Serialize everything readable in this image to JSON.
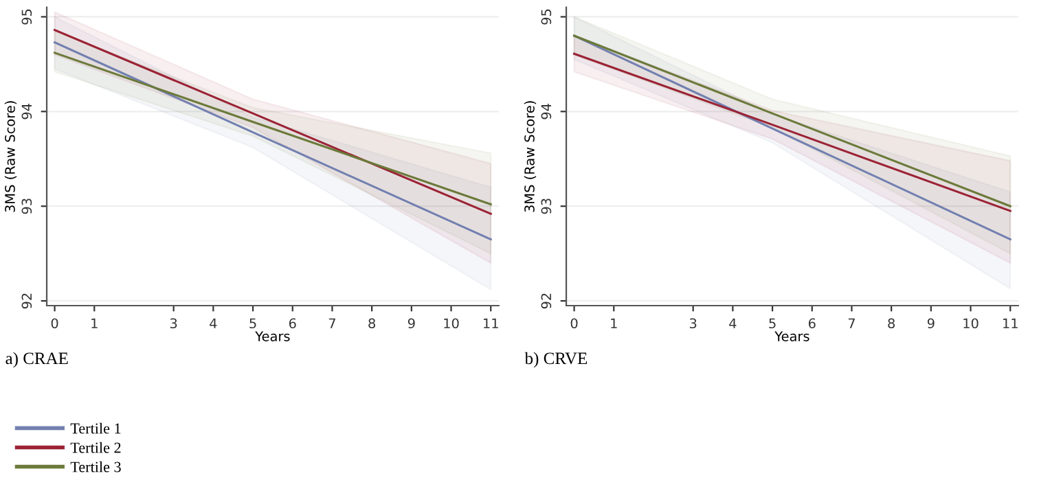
{
  "chart_data": [
    {
      "type": "line",
      "title": "a) CRAE",
      "xlabel": "Years",
      "ylabel": "3MS (Raw Score)",
      "x": [
        0,
        5,
        11
      ],
      "xlim": [
        -0.2,
        11.2
      ],
      "xticks": [
        0,
        1,
        3,
        4,
        5,
        6,
        7,
        8,
        9,
        10,
        11
      ],
      "ylim": [
        91.95,
        95.1
      ],
      "yticks": [
        92,
        93,
        94,
        95
      ],
      "grid": "y",
      "legend": "bottom left",
      "line_style": "solid",
      "series": [
        {
          "name": "Tertile 1",
          "color": "#7280b0",
          "values": [
            94.73,
            93.78,
            92.65
          ],
          "lower": [
            94.45,
            93.62,
            92.12
          ],
          "upper": [
            95.0,
            93.94,
            93.2
          ]
        },
        {
          "name": "Tertile 2",
          "color": "#9b2335",
          "values": [
            94.86,
            93.98,
            92.92
          ],
          "lower": [
            94.6,
            93.83,
            92.4
          ],
          "upper": [
            95.05,
            94.13,
            93.45
          ]
        },
        {
          "name": "Tertile 3",
          "color": "#6b7a3a",
          "values": [
            94.62,
            93.89,
            93.02
          ],
          "lower": [
            94.42,
            93.74,
            92.5
          ],
          "upper": [
            94.85,
            94.04,
            93.56
          ]
        }
      ]
    },
    {
      "type": "line",
      "title": "b) CRVE",
      "xlabel": "Years",
      "ylabel": "3MS (Raw Score)",
      "x": [
        0,
        5,
        11
      ],
      "xlim": [
        -0.2,
        11.2
      ],
      "xticks": [
        0,
        1,
        3,
        4,
        5,
        6,
        7,
        8,
        9,
        10,
        11
      ],
      "ylim": [
        91.95,
        95.1
      ],
      "yticks": [
        92,
        93,
        94,
        95
      ],
      "grid": "y",
      "line_style": "solid",
      "series": [
        {
          "color": "#7280b0",
          "values": [
            94.8,
            93.82,
            92.65
          ],
          "lower": [
            94.55,
            93.67,
            92.13
          ],
          "upper": [
            95.0,
            93.97,
            93.15
          ]
        },
        {
          "color": "#9b2335",
          "values": [
            94.61,
            93.86,
            92.95
          ],
          "lower": [
            94.42,
            93.71,
            92.4
          ],
          "upper": [
            94.8,
            94.01,
            93.48
          ]
        },
        {
          "color": "#6b7a3a",
          "values": [
            94.8,
            93.98,
            93.0
          ],
          "lower": [
            94.6,
            93.83,
            92.5
          ],
          "upper": [
            95.0,
            94.13,
            93.53
          ]
        }
      ]
    }
  ]
}
